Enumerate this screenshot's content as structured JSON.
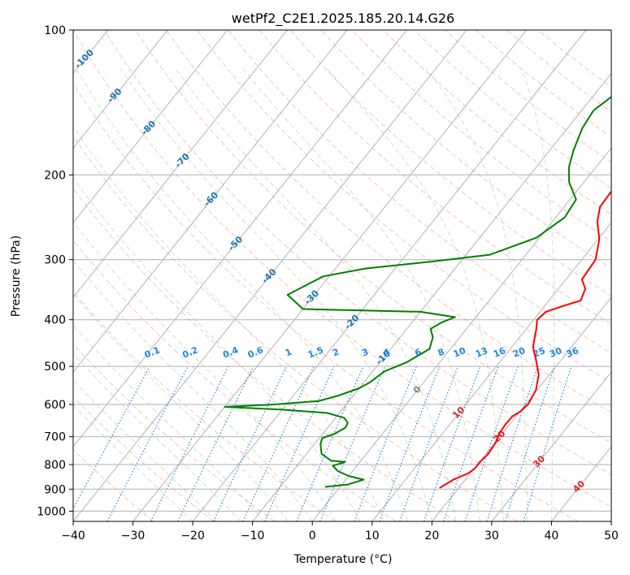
{
  "chart_data": {
    "type": "line",
    "subtype": "skew-t log-p diagram",
    "title": "wetPf2_C2E1.2025.185.20.14.G26",
    "xlabel": "Temperature (°C)",
    "ylabel": "Pressure (hPa)",
    "xlim": [
      -40,
      50
    ],
    "ylim": [
      1050,
      100
    ],
    "y_scale": "log",
    "grid": true,
    "x_ticks": [
      "−40",
      "−30",
      "−20",
      "−10",
      "0",
      "10",
      "20",
      "30",
      "40",
      "50"
    ],
    "x_tick_values": [
      -40,
      -30,
      -20,
      -10,
      0,
      10,
      20,
      30,
      40,
      50
    ],
    "y_ticks": [
      "100",
      "200",
      "300",
      "400",
      "500",
      "600",
      "700",
      "800",
      "900",
      "1000"
    ],
    "y_tick_values": [
      100,
      200,
      300,
      400,
      500,
      600,
      700,
      800,
      900,
      1000
    ],
    "isotherm_labels": [
      "-100",
      "-90",
      "-80",
      "-70",
      "-60",
      "-50",
      "-40",
      "-30",
      "-20",
      "-10",
      "0",
      "10",
      "20",
      "30",
      "40"
    ],
    "mixing_ratio_labels": [
      "0.1",
      "0.2",
      "0.4",
      "0.6",
      "1",
      "1.5",
      "2",
      "3",
      "4",
      "6",
      "8",
      "10",
      "13",
      "16",
      "20",
      "25",
      "30",
      "36"
    ],
    "colors": {
      "temperature": "#ff0000",
      "dewpoint": "#008000",
      "isotherm_label_cold": "#1f77b4",
      "isotherm_label_warm": "#d62728",
      "isotherm_label_zero": "#808080",
      "mixing_ratio": "#1e88e5",
      "dry_adiabat": "#fa8072",
      "moist_adiabat": "#90c890",
      "grid": "#b0b0b0"
    },
    "series": [
      {
        "name": "",
        "role": "temperature",
        "points": [
          [
            16.8,
            895
          ],
          [
            17.3,
            880
          ],
          [
            18.0,
            860
          ],
          [
            19.6,
            835
          ],
          [
            20.1,
            815
          ],
          [
            20.1,
            790
          ],
          [
            20.4,
            760
          ],
          [
            20.1,
            720
          ],
          [
            19.5,
            690
          ],
          [
            19.3,
            660
          ],
          [
            19.4,
            635
          ],
          [
            20.1,
            620
          ],
          [
            20.4,
            600
          ],
          [
            19.8,
            560
          ],
          [
            18.2,
            520
          ],
          [
            15.8,
            485
          ],
          [
            13.5,
            455
          ],
          [
            11.8,
            420
          ],
          [
            10.6,
            400
          ],
          [
            11.0,
            385
          ],
          [
            13.0,
            375
          ],
          [
            15.3,
            365
          ],
          [
            14.5,
            345
          ],
          [
            12.7,
            330
          ],
          [
            12.3,
            300
          ],
          [
            10.2,
            272
          ],
          [
            7.5,
            250
          ],
          [
            6.0,
            233
          ],
          [
            5.8,
            215
          ],
          [
            5.6,
            200
          ],
          [
            4.7,
            188
          ],
          [
            3.6,
            175
          ],
          [
            3.7,
            165
          ],
          [
            4.8,
            155
          ],
          [
            5.2,
            145
          ],
          [
            5.8,
            135
          ],
          [
            6.8,
            127
          ],
          [
            8.9,
            120
          ],
          [
            10.8,
            113
          ],
          [
            11.5,
            108
          ],
          [
            12.0,
            100
          ]
        ]
      },
      {
        "name": "",
        "role": "dewpoint",
        "points": [
          [
            -2.5,
            890
          ],
          [
            1.0,
            880
          ],
          [
            3.0,
            860
          ],
          [
            0.0,
            845
          ],
          [
            -2.5,
            825
          ],
          [
            -4.0,
            805
          ],
          [
            -2.5,
            790
          ],
          [
            -5.0,
            785
          ],
          [
            -7.5,
            760
          ],
          [
            -9.0,
            725
          ],
          [
            -9.5,
            705
          ],
          [
            -8.0,
            690
          ],
          [
            -7.0,
            670
          ],
          [
            -7.3,
            655
          ],
          [
            -8.5,
            640
          ],
          [
            -12.0,
            625
          ],
          [
            -20.0,
            615
          ],
          [
            -30.0,
            607
          ],
          [
            -22.0,
            600
          ],
          [
            -15.0,
            590
          ],
          [
            -12.5,
            575
          ],
          [
            -10.0,
            555
          ],
          [
            -9.0,
            540
          ],
          [
            -8.5,
            525
          ],
          [
            -8.0,
            512
          ],
          [
            -5.5,
            490
          ],
          [
            -3.5,
            460
          ],
          [
            -4.5,
            435
          ],
          [
            -6.0,
            418
          ],
          [
            -5.0,
            405
          ],
          [
            -3.5,
            395
          ],
          [
            -10.0,
            385
          ],
          [
            -30.0,
            380
          ],
          [
            -34.5,
            355
          ],
          [
            -31.0,
            325
          ],
          [
            -25.0,
            313
          ],
          [
            -15.0,
            303
          ],
          [
            -6.0,
            293
          ],
          [
            -0.5,
            270
          ],
          [
            1.5,
            245
          ],
          [
            1.0,
            225
          ],
          [
            -2.5,
            207
          ],
          [
            -4.5,
            193
          ],
          [
            -6.0,
            178
          ],
          [
            -7.5,
            160
          ],
          [
            -8.0,
            147
          ],
          [
            -6.5,
            135
          ],
          [
            -3.5,
            122
          ],
          [
            -1.0,
            110
          ],
          [
            1.0,
            100
          ]
        ]
      }
    ]
  }
}
